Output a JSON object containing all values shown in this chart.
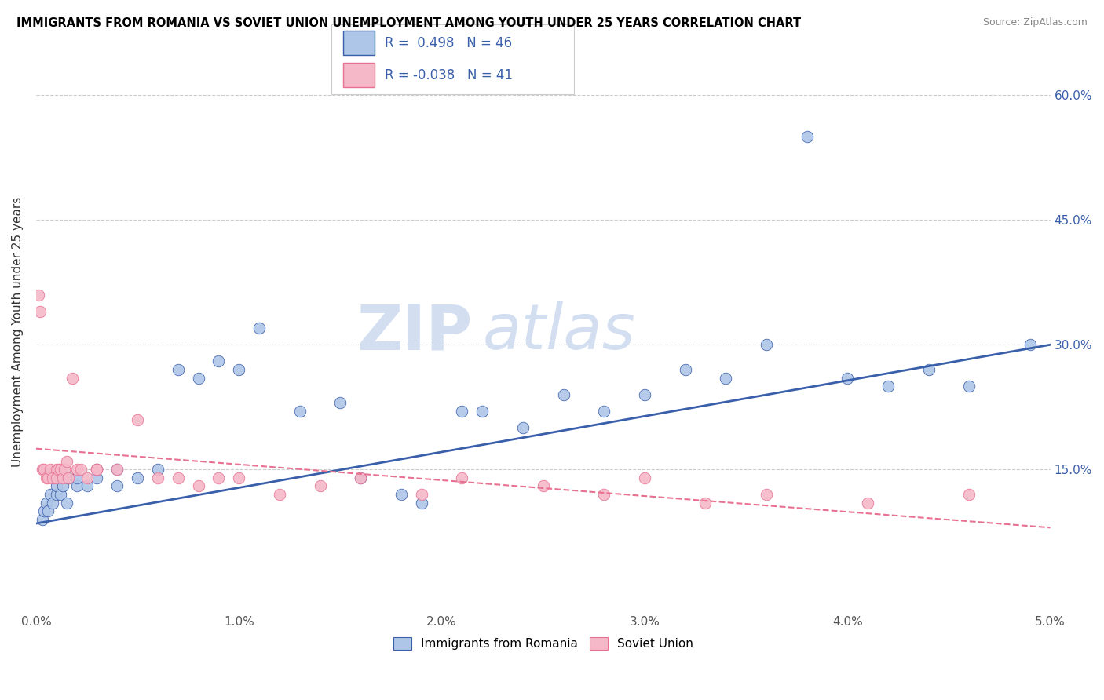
{
  "title": "IMMIGRANTS FROM ROMANIA VS SOVIET UNION UNEMPLOYMENT AMONG YOUTH UNDER 25 YEARS CORRELATION CHART",
  "source": "Source: ZipAtlas.com",
  "ylabel": "Unemployment Among Youth under 25 years",
  "xlim": [
    0.0,
    0.05
  ],
  "ylim": [
    -0.02,
    0.65
  ],
  "x_ticks": [
    0.0,
    0.01,
    0.02,
    0.03,
    0.04,
    0.05
  ],
  "x_tick_labels": [
    "0.0%",
    "1.0%",
    "2.0%",
    "3.0%",
    "4.0%",
    "5.0%"
  ],
  "y_ticks": [
    0.15,
    0.3,
    0.45,
    0.6
  ],
  "y_tick_labels": [
    "15.0%",
    "30.0%",
    "45.0%",
    "60.0%"
  ],
  "watermark_zip": "ZIP",
  "watermark_atlas": "atlas",
  "legend_label1": "Immigrants from Romania",
  "legend_label2": "Soviet Union",
  "r1": 0.498,
  "n1": 46,
  "r2": -0.038,
  "n2": 41,
  "romania_color": "#aec6e8",
  "soviet_color": "#f5b8c8",
  "romania_line_color": "#3a5faa",
  "soviet_line_color": "#e87090",
  "romania_x": [
    0.0003,
    0.0004,
    0.0005,
    0.0006,
    0.0007,
    0.0008,
    0.001,
    0.001,
    0.0012,
    0.0013,
    0.0015,
    0.0016,
    0.002,
    0.002,
    0.0025,
    0.003,
    0.003,
    0.004,
    0.004,
    0.005,
    0.006,
    0.007,
    0.008,
    0.009,
    0.01,
    0.011,
    0.013,
    0.015,
    0.016,
    0.018,
    0.019,
    0.021,
    0.022,
    0.024,
    0.026,
    0.028,
    0.03,
    0.032,
    0.034,
    0.036,
    0.038,
    0.04,
    0.042,
    0.044,
    0.046,
    0.049
  ],
  "romania_y": [
    0.09,
    0.1,
    0.11,
    0.1,
    0.12,
    0.11,
    0.12,
    0.13,
    0.12,
    0.13,
    0.11,
    0.14,
    0.13,
    0.14,
    0.13,
    0.14,
    0.15,
    0.13,
    0.15,
    0.14,
    0.15,
    0.27,
    0.26,
    0.28,
    0.27,
    0.32,
    0.22,
    0.23,
    0.14,
    0.12,
    0.11,
    0.22,
    0.22,
    0.2,
    0.24,
    0.22,
    0.24,
    0.27,
    0.26,
    0.3,
    0.55,
    0.26,
    0.25,
    0.27,
    0.25,
    0.3
  ],
  "soviet_x": [
    0.0001,
    0.0002,
    0.0003,
    0.0004,
    0.0005,
    0.0006,
    0.0007,
    0.0008,
    0.001,
    0.001,
    0.0011,
    0.0012,
    0.0013,
    0.0014,
    0.0015,
    0.0016,
    0.0018,
    0.002,
    0.0022,
    0.0025,
    0.003,
    0.003,
    0.004,
    0.005,
    0.006,
    0.007,
    0.008,
    0.009,
    0.01,
    0.012,
    0.014,
    0.016,
    0.019,
    0.021,
    0.025,
    0.028,
    0.03,
    0.033,
    0.036,
    0.041,
    0.046
  ],
  "soviet_y": [
    0.36,
    0.34,
    0.15,
    0.15,
    0.14,
    0.14,
    0.15,
    0.14,
    0.15,
    0.14,
    0.15,
    0.15,
    0.14,
    0.15,
    0.16,
    0.14,
    0.26,
    0.15,
    0.15,
    0.14,
    0.15,
    0.15,
    0.15,
    0.21,
    0.14,
    0.14,
    0.13,
    0.14,
    0.14,
    0.12,
    0.13,
    0.14,
    0.12,
    0.14,
    0.13,
    0.12,
    0.14,
    0.11,
    0.12,
    0.11,
    0.12
  ]
}
